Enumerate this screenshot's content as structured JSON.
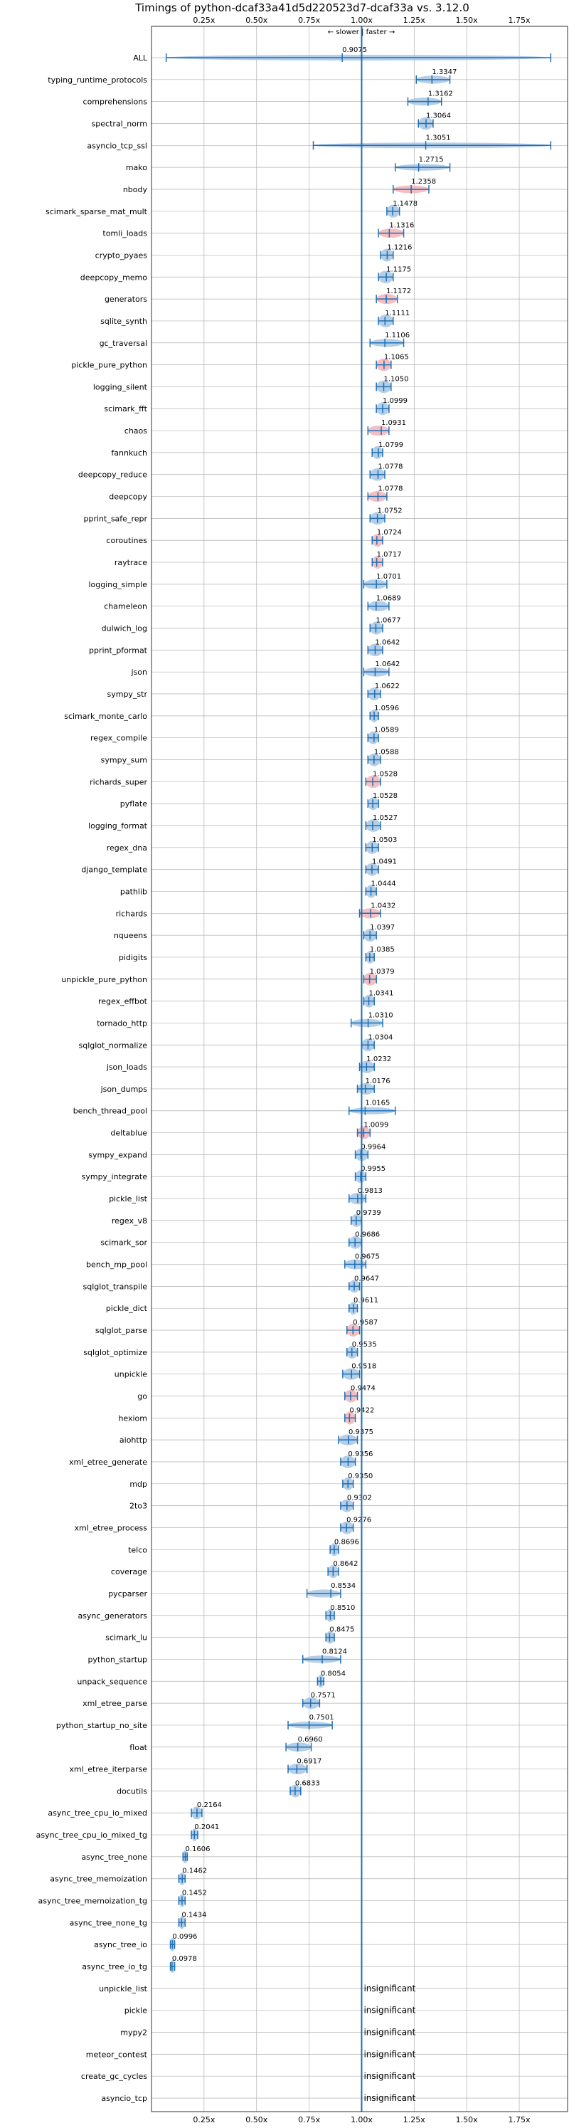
{
  "chart_data": {
    "type": "violin",
    "title": "Timings of python-dcaf33a41d5d220523d7-dcaf33a vs. 3.12.0",
    "direction_label": "← slower | faster →",
    "insignificant_label": "insignificant",
    "xlim": [
      0.0,
      1.98
    ],
    "xticks": [
      0.25,
      0.5,
      0.75,
      1.0,
      1.25,
      1.5,
      1.75
    ],
    "xtick_labels": [
      "0.25x",
      "0.50x",
      "0.75x",
      "1.00x",
      "1.25x",
      "1.50x",
      "1.75x"
    ],
    "reference_value": 1.0,
    "grid": true,
    "colors": {
      "violin": "#a7c5e3",
      "violin_highlight": "#f5b3b6",
      "line": "#1f6fb4",
      "grid": "#b0b0b0"
    },
    "benchmarks": [
      {
        "name": "ALL",
        "value": 0.9075,
        "label": "0.9075",
        "min": 0.07,
        "max": 1.9,
        "highlight": false,
        "insignificant": false
      },
      {
        "name": "typing_runtime_protocols",
        "value": 1.3347,
        "label": "1.3347",
        "min": 1.26,
        "max": 1.42,
        "highlight": false,
        "insignificant": false
      },
      {
        "name": "comprehensions",
        "value": 1.3162,
        "label": "1.3162",
        "min": 1.22,
        "max": 1.38,
        "highlight": false,
        "insignificant": false
      },
      {
        "name": "spectral_norm",
        "value": 1.3064,
        "label": "1.3064",
        "min": 1.27,
        "max": 1.34,
        "highlight": false,
        "insignificant": false
      },
      {
        "name": "asyncio_tcp_ssl",
        "value": 1.3051,
        "label": "1.3051",
        "min": 0.77,
        "max": 1.9,
        "highlight": false,
        "insignificant": false
      },
      {
        "name": "mako",
        "value": 1.2715,
        "label": "1.2715",
        "min": 1.16,
        "max": 1.42,
        "highlight": false,
        "insignificant": false
      },
      {
        "name": "nbody",
        "value": 1.2358,
        "label": "1.2358",
        "min": 1.15,
        "max": 1.32,
        "highlight": true,
        "insignificant": false
      },
      {
        "name": "scimark_sparse_mat_mult",
        "value": 1.1478,
        "label": "1.1478",
        "min": 1.12,
        "max": 1.18,
        "highlight": false,
        "insignificant": false
      },
      {
        "name": "tomli_loads",
        "value": 1.1316,
        "label": "1.1316",
        "min": 1.08,
        "max": 1.2,
        "highlight": true,
        "insignificant": false
      },
      {
        "name": "crypto_pyaes",
        "value": 1.1216,
        "label": "1.1216",
        "min": 1.09,
        "max": 1.15,
        "highlight": false,
        "insignificant": false
      },
      {
        "name": "deepcopy_memo",
        "value": 1.1175,
        "label": "1.1175",
        "min": 1.08,
        "max": 1.15,
        "highlight": false,
        "insignificant": false
      },
      {
        "name": "generators",
        "value": 1.1172,
        "label": "1.1172",
        "min": 1.07,
        "max": 1.17,
        "highlight": true,
        "insignificant": false
      },
      {
        "name": "sqlite_synth",
        "value": 1.1111,
        "label": "1.1111",
        "min": 1.08,
        "max": 1.15,
        "highlight": false,
        "insignificant": false
      },
      {
        "name": "gc_traversal",
        "value": 1.1106,
        "label": "1.1106",
        "min": 1.04,
        "max": 1.2,
        "highlight": false,
        "insignificant": false
      },
      {
        "name": "pickle_pure_python",
        "value": 1.1065,
        "label": "1.1065",
        "min": 1.07,
        "max": 1.14,
        "highlight": true,
        "insignificant": false
      },
      {
        "name": "logging_silent",
        "value": 1.105,
        "label": "1.1050",
        "min": 1.07,
        "max": 1.14,
        "highlight": false,
        "insignificant": false
      },
      {
        "name": "scimark_fft",
        "value": 1.0999,
        "label": "1.0999",
        "min": 1.07,
        "max": 1.13,
        "highlight": false,
        "insignificant": false
      },
      {
        "name": "chaos",
        "value": 1.0931,
        "label": "1.0931",
        "min": 1.03,
        "max": 1.13,
        "highlight": true,
        "insignificant": false
      },
      {
        "name": "fannkuch",
        "value": 1.0799,
        "label": "1.0799",
        "min": 1.05,
        "max": 1.1,
        "highlight": false,
        "insignificant": false
      },
      {
        "name": "deepcopy_reduce",
        "value": 1.0778,
        "label": "1.0778",
        "min": 1.04,
        "max": 1.11,
        "highlight": false,
        "insignificant": false
      },
      {
        "name": "deepcopy",
        "value": 1.0778,
        "label": "1.0778",
        "min": 1.03,
        "max": 1.12,
        "highlight": true,
        "insignificant": false
      },
      {
        "name": "pprint_safe_repr",
        "value": 1.0752,
        "label": "1.0752",
        "min": 1.04,
        "max": 1.11,
        "highlight": false,
        "insignificant": false
      },
      {
        "name": "coroutines",
        "value": 1.0724,
        "label": "1.0724",
        "min": 1.05,
        "max": 1.1,
        "highlight": true,
        "insignificant": false
      },
      {
        "name": "raytrace",
        "value": 1.0717,
        "label": "1.0717",
        "min": 1.05,
        "max": 1.1,
        "highlight": true,
        "insignificant": false
      },
      {
        "name": "logging_simple",
        "value": 1.0701,
        "label": "1.0701",
        "min": 1.01,
        "max": 1.12,
        "highlight": false,
        "insignificant": false
      },
      {
        "name": "chameleon",
        "value": 1.0689,
        "label": "1.0689",
        "min": 1.03,
        "max": 1.13,
        "highlight": false,
        "insignificant": false
      },
      {
        "name": "dulwich_log",
        "value": 1.0677,
        "label": "1.0677",
        "min": 1.04,
        "max": 1.1,
        "highlight": false,
        "insignificant": false
      },
      {
        "name": "pprint_pformat",
        "value": 1.0642,
        "label": "1.0642",
        "min": 1.03,
        "max": 1.1,
        "highlight": false,
        "insignificant": false
      },
      {
        "name": "json",
        "value": 1.0642,
        "label": "1.0642",
        "min": 1.01,
        "max": 1.13,
        "highlight": false,
        "insignificant": false
      },
      {
        "name": "sympy_str",
        "value": 1.0622,
        "label": "1.0622",
        "min": 1.03,
        "max": 1.09,
        "highlight": false,
        "insignificant": false
      },
      {
        "name": "scimark_monte_carlo",
        "value": 1.0596,
        "label": "1.0596",
        "min": 1.04,
        "max": 1.08,
        "highlight": false,
        "insignificant": false
      },
      {
        "name": "regex_compile",
        "value": 1.0589,
        "label": "1.0589",
        "min": 1.03,
        "max": 1.08,
        "highlight": false,
        "insignificant": false
      },
      {
        "name": "sympy_sum",
        "value": 1.0588,
        "label": "1.0588",
        "min": 1.03,
        "max": 1.09,
        "highlight": false,
        "insignificant": false
      },
      {
        "name": "richards_super",
        "value": 1.0528,
        "label": "1.0528",
        "min": 1.02,
        "max": 1.09,
        "highlight": true,
        "insignificant": false
      },
      {
        "name": "pyflate",
        "value": 1.0528,
        "label": "1.0528",
        "min": 1.03,
        "max": 1.08,
        "highlight": false,
        "insignificant": false
      },
      {
        "name": "logging_format",
        "value": 1.0527,
        "label": "1.0527",
        "min": 1.02,
        "max": 1.09,
        "highlight": false,
        "insignificant": false
      },
      {
        "name": "regex_dna",
        "value": 1.0503,
        "label": "1.0503",
        "min": 1.02,
        "max": 1.08,
        "highlight": false,
        "insignificant": false
      },
      {
        "name": "django_template",
        "value": 1.0491,
        "label": "1.0491",
        "min": 1.02,
        "max": 1.08,
        "highlight": false,
        "insignificant": false
      },
      {
        "name": "pathlib",
        "value": 1.0444,
        "label": "1.0444",
        "min": 1.02,
        "max": 1.07,
        "highlight": false,
        "insignificant": false
      },
      {
        "name": "richards",
        "value": 1.0432,
        "label": "1.0432",
        "min": 0.99,
        "max": 1.09,
        "highlight": true,
        "insignificant": false
      },
      {
        "name": "nqueens",
        "value": 1.0397,
        "label": "1.0397",
        "min": 1.01,
        "max": 1.07,
        "highlight": false,
        "insignificant": false
      },
      {
        "name": "pidigits",
        "value": 1.0385,
        "label": "1.0385",
        "min": 1.02,
        "max": 1.06,
        "highlight": false,
        "insignificant": false
      },
      {
        "name": "unpickle_pure_python",
        "value": 1.0379,
        "label": "1.0379",
        "min": 1.01,
        "max": 1.07,
        "highlight": true,
        "insignificant": false
      },
      {
        "name": "regex_effbot",
        "value": 1.0341,
        "label": "1.0341",
        "min": 1.01,
        "max": 1.06,
        "highlight": false,
        "insignificant": false
      },
      {
        "name": "tornado_http",
        "value": 1.031,
        "label": "1.0310",
        "min": 0.95,
        "max": 1.1,
        "highlight": false,
        "insignificant": false
      },
      {
        "name": "sqlglot_normalize",
        "value": 1.0304,
        "label": "1.0304",
        "min": 1.0,
        "max": 1.06,
        "highlight": false,
        "insignificant": false
      },
      {
        "name": "json_loads",
        "value": 1.0232,
        "label": "1.0232",
        "min": 0.99,
        "max": 1.06,
        "highlight": false,
        "insignificant": false
      },
      {
        "name": "json_dumps",
        "value": 1.0176,
        "label": "1.0176",
        "min": 0.98,
        "max": 1.06,
        "highlight": false,
        "insignificant": false
      },
      {
        "name": "bench_thread_pool",
        "value": 1.0165,
        "label": "1.0165",
        "min": 0.94,
        "max": 1.16,
        "highlight": false,
        "insignificant": false
      },
      {
        "name": "deltablue",
        "value": 1.0099,
        "label": "1.0099",
        "min": 0.98,
        "max": 1.04,
        "highlight": true,
        "insignificant": false
      },
      {
        "name": "sympy_expand",
        "value": 0.9964,
        "label": "0.9964",
        "min": 0.97,
        "max": 1.03,
        "highlight": false,
        "insignificant": false
      },
      {
        "name": "sympy_integrate",
        "value": 0.9955,
        "label": "0.9955",
        "min": 0.97,
        "max": 1.02,
        "highlight": false,
        "insignificant": false
      },
      {
        "name": "pickle_list",
        "value": 0.9813,
        "label": "0.9813",
        "min": 0.94,
        "max": 1.02,
        "highlight": false,
        "insignificant": false
      },
      {
        "name": "regex_v8",
        "value": 0.9739,
        "label": "0.9739",
        "min": 0.95,
        "max": 1.0,
        "highlight": false,
        "insignificant": false
      },
      {
        "name": "scimark_sor",
        "value": 0.9686,
        "label": "0.9686",
        "min": 0.94,
        "max": 1.0,
        "highlight": false,
        "insignificant": false
      },
      {
        "name": "bench_mp_pool",
        "value": 0.9675,
        "label": "0.9675",
        "min": 0.92,
        "max": 1.02,
        "highlight": false,
        "insignificant": false
      },
      {
        "name": "sqlglot_transpile",
        "value": 0.9647,
        "label": "0.9647",
        "min": 0.94,
        "max": 0.99,
        "highlight": false,
        "insignificant": false
      },
      {
        "name": "pickle_dict",
        "value": 0.9611,
        "label": "0.9611",
        "min": 0.94,
        "max": 0.98,
        "highlight": false,
        "insignificant": false
      },
      {
        "name": "sqlglot_parse",
        "value": 0.9587,
        "label": "0.9587",
        "min": 0.93,
        "max": 0.99,
        "highlight": true,
        "insignificant": false
      },
      {
        "name": "sqlglot_optimize",
        "value": 0.9535,
        "label": "0.9535",
        "min": 0.93,
        "max": 0.98,
        "highlight": false,
        "insignificant": false
      },
      {
        "name": "unpickle",
        "value": 0.9518,
        "label": "0.9518",
        "min": 0.91,
        "max": 0.99,
        "highlight": false,
        "insignificant": false
      },
      {
        "name": "go",
        "value": 0.9474,
        "label": "0.9474",
        "min": 0.92,
        "max": 0.98,
        "highlight": true,
        "insignificant": false
      },
      {
        "name": "hexiom",
        "value": 0.9422,
        "label": "0.9422",
        "min": 0.92,
        "max": 0.97,
        "highlight": true,
        "insignificant": false
      },
      {
        "name": "aiohttp",
        "value": 0.9375,
        "label": "0.9375",
        "min": 0.89,
        "max": 0.98,
        "highlight": false,
        "insignificant": false
      },
      {
        "name": "xml_etree_generate",
        "value": 0.9356,
        "label": "0.9356",
        "min": 0.9,
        "max": 0.97,
        "highlight": false,
        "insignificant": false
      },
      {
        "name": "mdp",
        "value": 0.935,
        "label": "0.9350",
        "min": 0.91,
        "max": 0.96,
        "highlight": false,
        "insignificant": false
      },
      {
        "name": "2to3",
        "value": 0.9302,
        "label": "0.9302",
        "min": 0.9,
        "max": 0.96,
        "highlight": false,
        "insignificant": false
      },
      {
        "name": "xml_etree_process",
        "value": 0.9276,
        "label": "0.9276",
        "min": 0.9,
        "max": 0.96,
        "highlight": false,
        "insignificant": false
      },
      {
        "name": "telco",
        "value": 0.8696,
        "label": "0.8696",
        "min": 0.85,
        "max": 0.89,
        "highlight": false,
        "insignificant": false
      },
      {
        "name": "coverage",
        "value": 0.8642,
        "label": "0.8642",
        "min": 0.84,
        "max": 0.89,
        "highlight": false,
        "insignificant": false
      },
      {
        "name": "pycparser",
        "value": 0.8534,
        "label": "0.8534",
        "min": 0.74,
        "max": 0.9,
        "highlight": false,
        "insignificant": false
      },
      {
        "name": "async_generators",
        "value": 0.851,
        "label": "0.8510",
        "min": 0.83,
        "max": 0.87,
        "highlight": false,
        "insignificant": false
      },
      {
        "name": "scimark_lu",
        "value": 0.8475,
        "label": "0.8475",
        "min": 0.83,
        "max": 0.87,
        "highlight": false,
        "insignificant": false
      },
      {
        "name": "python_startup",
        "value": 0.8124,
        "label": "0.8124",
        "min": 0.72,
        "max": 0.9,
        "highlight": false,
        "insignificant": false
      },
      {
        "name": "unpack_sequence",
        "value": 0.8054,
        "label": "0.8054",
        "min": 0.79,
        "max": 0.82,
        "highlight": false,
        "insignificant": false
      },
      {
        "name": "xml_etree_parse",
        "value": 0.7571,
        "label": "0.7571",
        "min": 0.72,
        "max": 0.8,
        "highlight": false,
        "insignificant": false
      },
      {
        "name": "python_startup_no_site",
        "value": 0.7501,
        "label": "0.7501",
        "min": 0.65,
        "max": 0.86,
        "highlight": false,
        "insignificant": false
      },
      {
        "name": "float",
        "value": 0.696,
        "label": "0.6960",
        "min": 0.64,
        "max": 0.76,
        "highlight": false,
        "insignificant": false
      },
      {
        "name": "xml_etree_iterparse",
        "value": 0.6917,
        "label": "0.6917",
        "min": 0.65,
        "max": 0.74,
        "highlight": false,
        "insignificant": false
      },
      {
        "name": "docutils",
        "value": 0.6833,
        "label": "0.6833",
        "min": 0.66,
        "max": 0.71,
        "highlight": false,
        "insignificant": false
      },
      {
        "name": "async_tree_cpu_io_mixed",
        "value": 0.2164,
        "label": "0.2164",
        "min": 0.19,
        "max": 0.24,
        "highlight": false,
        "insignificant": false
      },
      {
        "name": "async_tree_cpu_io_mixed_tg",
        "value": 0.2041,
        "label": "0.2041",
        "min": 0.19,
        "max": 0.22,
        "highlight": false,
        "insignificant": false
      },
      {
        "name": "async_tree_none",
        "value": 0.1606,
        "label": "0.1606",
        "min": 0.15,
        "max": 0.17,
        "highlight": false,
        "insignificant": false
      },
      {
        "name": "async_tree_memoization",
        "value": 0.1462,
        "label": "0.1462",
        "min": 0.13,
        "max": 0.16,
        "highlight": false,
        "insignificant": false
      },
      {
        "name": "async_tree_memoization_tg",
        "value": 0.1452,
        "label": "0.1452",
        "min": 0.13,
        "max": 0.16,
        "highlight": false,
        "insignificant": false
      },
      {
        "name": "async_tree_none_tg",
        "value": 0.1434,
        "label": "0.1434",
        "min": 0.13,
        "max": 0.16,
        "highlight": false,
        "insignificant": false
      },
      {
        "name": "async_tree_io",
        "value": 0.0996,
        "label": "0.0996",
        "min": 0.09,
        "max": 0.11,
        "highlight": false,
        "insignificant": false
      },
      {
        "name": "async_tree_io_tg",
        "value": 0.0978,
        "label": "0.0978",
        "min": 0.09,
        "max": 0.11,
        "highlight": false,
        "insignificant": false
      },
      {
        "name": "unpickle_list",
        "value": null,
        "label": "",
        "min": null,
        "max": null,
        "highlight": false,
        "insignificant": true
      },
      {
        "name": "pickle",
        "value": null,
        "label": "",
        "min": null,
        "max": null,
        "highlight": false,
        "insignificant": true
      },
      {
        "name": "mypy2",
        "value": null,
        "label": "",
        "min": null,
        "max": null,
        "highlight": false,
        "insignificant": true
      },
      {
        "name": "meteor_contest",
        "value": null,
        "label": "",
        "min": null,
        "max": null,
        "highlight": false,
        "insignificant": true
      },
      {
        "name": "create_gc_cycles",
        "value": null,
        "label": "",
        "min": null,
        "max": null,
        "highlight": false,
        "insignificant": true
      },
      {
        "name": "asyncio_tcp",
        "value": null,
        "label": "",
        "min": null,
        "max": null,
        "highlight": false,
        "insignificant": true
      }
    ]
  }
}
